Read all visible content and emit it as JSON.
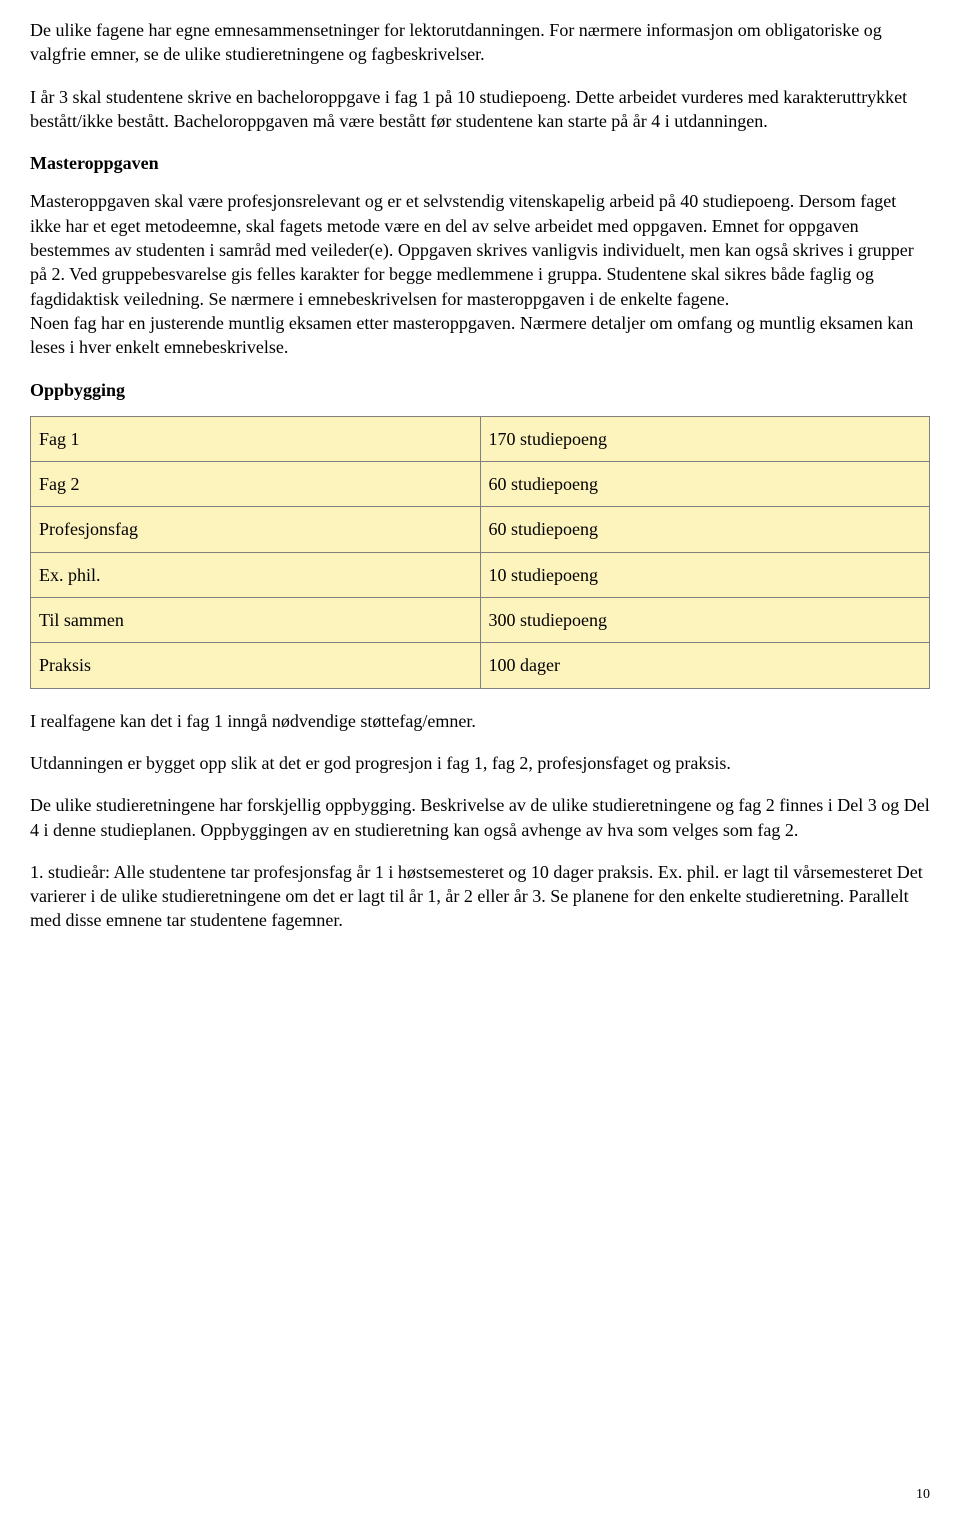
{
  "paragraphs": {
    "p1": "De ulike fagene har egne emnesammensetninger for lektorutdanningen. For nærmere informasjon om obligatoriske og valgfrie emner, se de ulike studieretningene og fagbeskrivelser.",
    "p2": "I år 3 skal studentene skrive en bacheloroppgave i fag 1 på 10 studiepoeng. Dette arbeidet vurderes med karakteruttrykket bestått/ikke bestått. Bacheloroppgaven må være bestått før studentene kan starte på år 4 i utdanningen.",
    "h1": "Masteroppgaven",
    "p3a": "Masteroppgaven skal være profesjonsrelevant og er et selvstendig vitenskapelig arbeid på 40 studiepoeng. Dersom faget ikke har et eget metodeemne, skal fagets metode være en del av selve arbeidet med oppgaven. Emnet for oppgaven bestemmes av studenten i samråd med veileder(e). Oppgaven skrives vanligvis individuelt, men kan også skrives i grupper på 2. Ved gruppebesvarelse gis felles karakter for begge medlemmene i gruppa. Studentene skal sikres både faglig og fagdidaktisk veiledning. Se nærmere i emnebeskrivelsen for masteroppgaven i de enkelte fagene.",
    "p3b": "Noen fag har en justerende muntlig eksamen etter masteroppgaven. Nærmere detaljer om omfang og muntlig eksamen kan leses i hver enkelt emnebeskrivelse.",
    "h2": "Oppbygging",
    "p4": "I realfagene kan det i fag 1 inngå nødvendige støttefag/emner.",
    "p5": "Utdanningen er bygget opp slik at det er god progresjon i fag 1, fag 2, profesjonsfaget og praksis.",
    "p6": "De ulike studieretningene har forskjellig oppbygging. Beskrivelse av de ulike studieretningene og fag 2 finnes i Del 3 og Del 4 i denne studieplanen. Oppbyggingen av en studieretning kan også avhenge av hva som velges som fag 2.",
    "p7": " 1. studieår: Alle studentene tar profesjonsfag år 1 i høstsemesteret og 10 dager praksis. Ex. phil. er lagt til vårsemesteret Det varierer i de ulike studieretningene om det er lagt til år 1, år 2 eller år 3. Se planene for den enkelte studieretning. Parallelt med disse emnene tar studentene fagemner."
  },
  "table": {
    "columns": [
      "label",
      "value"
    ],
    "rows": [
      [
        "Fag 1",
        "170 studiepoeng"
      ],
      [
        "Fag 2",
        "60 studiepoeng"
      ],
      [
        "Profesjonsfag",
        "60 studiepoeng"
      ],
      [
        "Ex. phil.",
        "10 studiepoeng"
      ],
      [
        "Til sammen",
        "300 studiepoeng"
      ],
      [
        "Praksis",
        "100 dager"
      ]
    ],
    "background_color": "#fdf3bd",
    "border_color": "#808080",
    "cell_padding": 10,
    "font_size": 18
  },
  "page_number": "10",
  "typography": {
    "body_font_family": "Times New Roman",
    "body_font_size": 18,
    "line_height": 1.35,
    "text_color": "#000000",
    "background_color": "#ffffff"
  }
}
